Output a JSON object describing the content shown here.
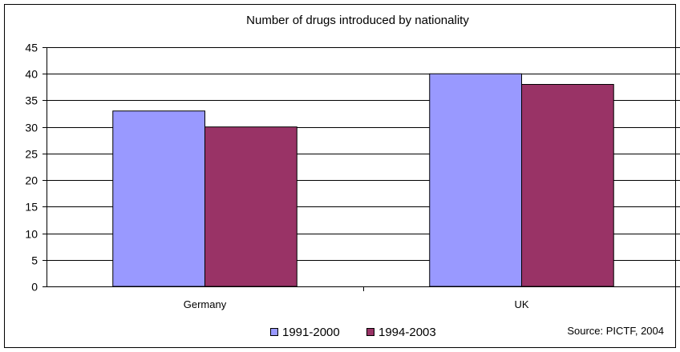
{
  "chart_data": {
    "type": "bar",
    "title": "Number of drugs introduced by nationality",
    "categories": [
      "Germany",
      "UK"
    ],
    "series": [
      {
        "name": "1991-2000",
        "values": [
          33,
          40
        ],
        "color": "#9999ff"
      },
      {
        "name": "1994-2003",
        "values": [
          30,
          38
        ],
        "color": "#993366"
      }
    ],
    "xlabel": "",
    "ylabel": "",
    "ylim": [
      0,
      45
    ],
    "yticks": [
      0,
      5,
      10,
      15,
      20,
      25,
      30,
      35,
      40,
      45
    ],
    "grid": true,
    "legend_position": "bottom",
    "source": "Source: PICTF, 2004"
  }
}
